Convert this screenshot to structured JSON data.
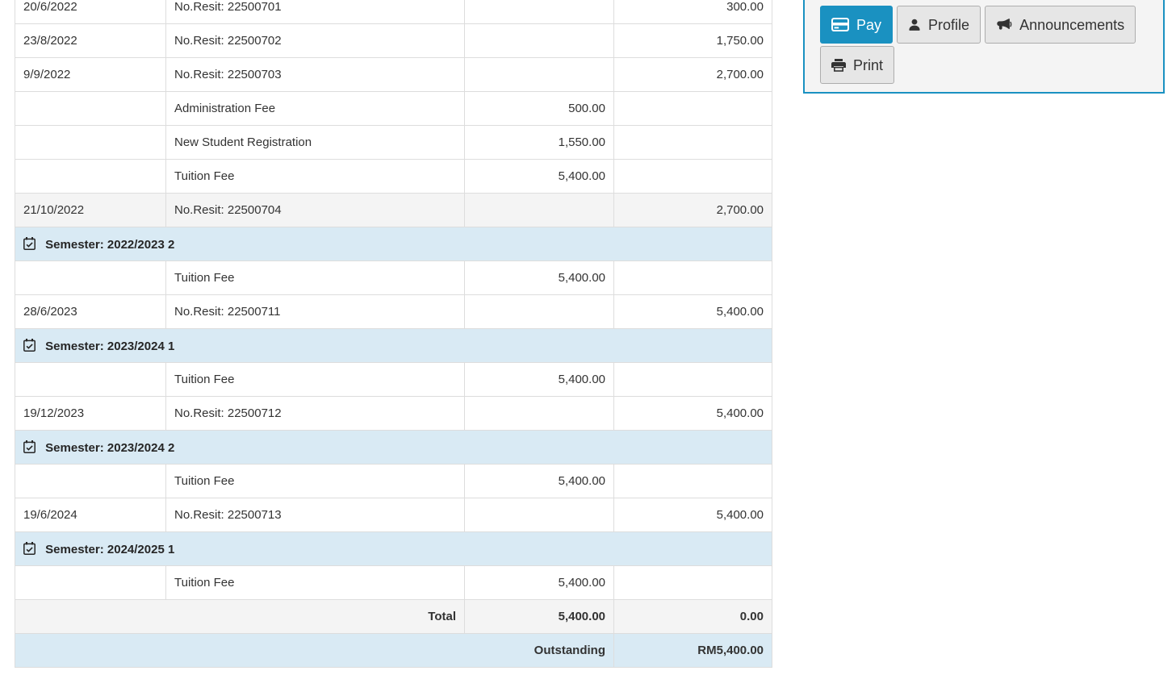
{
  "colors": {
    "accent_blue": "#1a91c1",
    "panel_background": "#f4f4f4",
    "semester_row_background": "#d9eaf4",
    "shaded_row_background": "#f4f4f4",
    "table_border": "#dddddd",
    "text": "#333333",
    "button_gray": "#e6e6e6"
  },
  "fees_table": {
    "rows": [
      {
        "type": "data",
        "date": "20/6/2022",
        "description": "No.Resit: 22500701",
        "charge": "",
        "payment": "300.00"
      },
      {
        "type": "data",
        "date": "23/8/2022",
        "description": "No.Resit: 22500702",
        "charge": "",
        "payment": "1,750.00"
      },
      {
        "type": "data",
        "date": "9/9/2022",
        "description": "No.Resit: 22500703",
        "charge": "",
        "payment": "2,700.00"
      },
      {
        "type": "data",
        "date": "",
        "description": "Administration Fee",
        "charge": "500.00",
        "payment": ""
      },
      {
        "type": "data",
        "date": "",
        "description": "New Student Registration",
        "charge": "1,550.00",
        "payment": ""
      },
      {
        "type": "data",
        "date": "",
        "description": "Tuition Fee",
        "charge": "5,400.00",
        "payment": ""
      },
      {
        "type": "data",
        "shaded": true,
        "date": "21/10/2022",
        "description": "No.Resit: 22500704",
        "charge": "",
        "payment": "2,700.00"
      },
      {
        "type": "semester",
        "label": "Semester: 2022/2023 2"
      },
      {
        "type": "data",
        "date": "",
        "description": "Tuition Fee",
        "charge": "5,400.00",
        "payment": ""
      },
      {
        "type": "data",
        "date": "28/6/2023",
        "description": "No.Resit: 22500711",
        "charge": "",
        "payment": "5,400.00"
      },
      {
        "type": "semester",
        "label": "Semester: 2023/2024 1"
      },
      {
        "type": "data",
        "date": "",
        "description": "Tuition Fee",
        "charge": "5,400.00",
        "payment": ""
      },
      {
        "type": "data",
        "date": "19/12/2023",
        "description": "No.Resit: 22500712",
        "charge": "",
        "payment": "5,400.00"
      },
      {
        "type": "semester",
        "label": "Semester: 2023/2024 2"
      },
      {
        "type": "data",
        "date": "",
        "description": "Tuition Fee",
        "charge": "5,400.00",
        "payment": ""
      },
      {
        "type": "data",
        "date": "19/6/2024",
        "description": "No.Resit: 22500713",
        "charge": "",
        "payment": "5,400.00"
      },
      {
        "type": "semester",
        "label": "Semester: 2024/2025 1"
      },
      {
        "type": "data",
        "date": "",
        "description": "Tuition Fee",
        "charge": "5,400.00",
        "payment": ""
      },
      {
        "type": "total",
        "label": "Total",
        "charge": "5,400.00",
        "payment": "0.00"
      },
      {
        "type": "outstanding",
        "label": "Outstanding",
        "payment": "RM5,400.00"
      }
    ]
  },
  "actions": {
    "pay": "Pay",
    "profile": "Profile",
    "announcements": "Announcements",
    "print": "Print"
  }
}
